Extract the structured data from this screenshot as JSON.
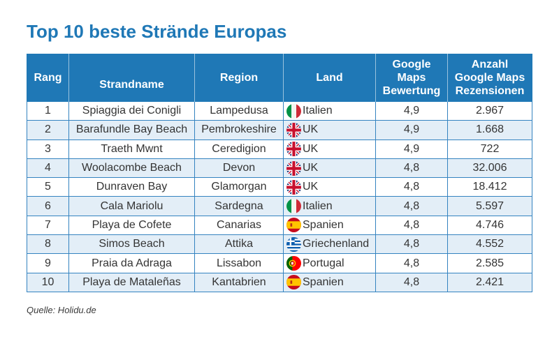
{
  "colors": {
    "accent": "#1f78b6",
    "border": "#3483c0",
    "row_alt": "#e3eef7",
    "text": "#343434",
    "header_text": "#ffffff"
  },
  "source": "Quelle: Holidu.de",
  "chart_data": {
    "type": "table",
    "title": "Top 10 beste Strände Europas",
    "columns": [
      "Rang",
      "Strandname",
      "Region",
      "Land",
      "Google Maps Bewertung",
      "Anzahl Google Maps Rezensionen"
    ],
    "rows": [
      {
        "rang": "1",
        "strandname": "Spiaggia dei Conigli",
        "region": "Lampedusa",
        "land": "Italien",
        "flag": "italy-flag-icon",
        "bewertung": "4,9",
        "rezensionen": "2.967"
      },
      {
        "rang": "2",
        "strandname": "Barafundle Bay Beach",
        "region": "Pembrokeshire",
        "land": "UK",
        "flag": "uk-flag-icon",
        "bewertung": "4,9",
        "rezensionen": "1.668"
      },
      {
        "rang": "3",
        "strandname": "Traeth Mwnt",
        "region": "Ceredigion",
        "land": "UK",
        "flag": "uk-flag-icon",
        "bewertung": "4,9",
        "rezensionen": "722"
      },
      {
        "rang": "4",
        "strandname": "Woolacombe Beach",
        "region": "Devon",
        "land": "UK",
        "flag": "uk-flag-icon",
        "bewertung": "4,8",
        "rezensionen": "32.006"
      },
      {
        "rang": "5",
        "strandname": "Dunraven Bay",
        "region": "Glamorgan",
        "land": "UK",
        "flag": "uk-flag-icon",
        "bewertung": "4,8",
        "rezensionen": "18.412"
      },
      {
        "rang": "6",
        "strandname": "Cala Mariolu",
        "region": "Sardegna",
        "land": "Italien",
        "flag": "italy-flag-icon",
        "bewertung": "4,8",
        "rezensionen": "5.597"
      },
      {
        "rang": "7",
        "strandname": "Playa de Cofete",
        "region": "Canarias",
        "land": "Spanien",
        "flag": "spain-flag-icon",
        "bewertung": "4,8",
        "rezensionen": "4.746"
      },
      {
        "rang": "8",
        "strandname": "Simos Beach",
        "region": "Attika",
        "land": "Griechenland",
        "flag": "greece-flag-icon",
        "bewertung": "4,8",
        "rezensionen": "4.552"
      },
      {
        "rang": "9",
        "strandname": "Praia da Adraga",
        "region": "Lissabon",
        "land": "Portugal",
        "flag": "portugal-flag-icon",
        "bewertung": "4,8",
        "rezensionen": "2.585"
      },
      {
        "rang": "10",
        "strandname": "Playa de Mataleñas",
        "region": "Kantabrien",
        "land": "Spanien",
        "flag": "spain-flag-icon",
        "bewertung": "4,8",
        "rezensionen": "2.421"
      }
    ]
  }
}
